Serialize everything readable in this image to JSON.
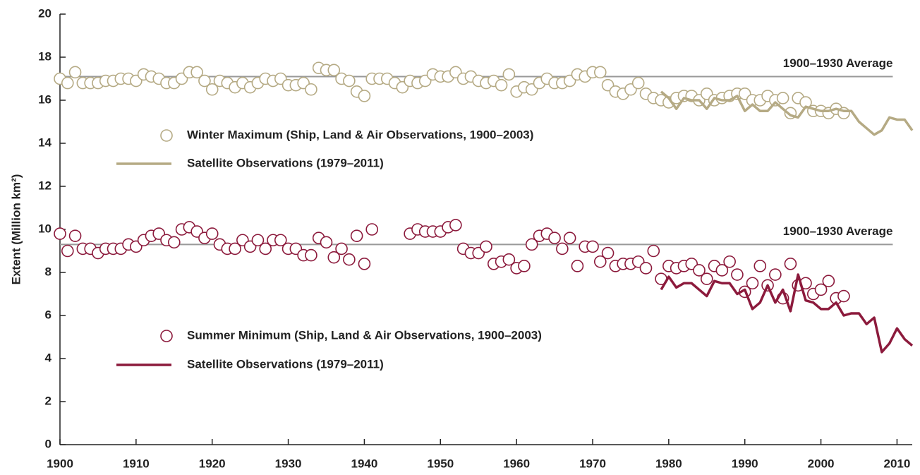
{
  "chart_data": {
    "type": "scatter",
    "y_label": "Extent (Million km²)",
    "xlim": [
      1900,
      2012
    ],
    "xticks": [
      1900,
      1910,
      1920,
      1930,
      1940,
      1950,
      1960,
      1970,
      1980,
      1990,
      2000,
      2010
    ],
    "ylim": [
      0,
      20
    ],
    "yticks": [
      0,
      2,
      4,
      6,
      8,
      10,
      12,
      14,
      16,
      18,
      20
    ],
    "reference_lines": [
      {
        "value": 17.1,
        "label": "1900–1930 Average",
        "color": "#999999"
      },
      {
        "value": 9.3,
        "label": "1900–1930 Average",
        "color": "#999999"
      }
    ],
    "series": [
      {
        "name": "Winter Maximum (Ship, Land & Air Observations, 1900–2003)",
        "type": "scatter",
        "color": "#b5aa84",
        "x": [
          1900,
          1901,
          1902,
          1903,
          1904,
          1905,
          1906,
          1907,
          1908,
          1909,
          1910,
          1911,
          1912,
          1913,
          1914,
          1915,
          1916,
          1917,
          1918,
          1919,
          1920,
          1921,
          1922,
          1923,
          1924,
          1925,
          1926,
          1927,
          1928,
          1929,
          1930,
          1931,
          1932,
          1933,
          1934,
          1935,
          1936,
          1937,
          1938,
          1939,
          1940,
          1941,
          1942,
          1943,
          1944,
          1945,
          1946,
          1947,
          1948,
          1949,
          1950,
          1951,
          1952,
          1953,
          1954,
          1955,
          1956,
          1957,
          1958,
          1959,
          1960,
          1961,
          1962,
          1963,
          1964,
          1965,
          1966,
          1967,
          1968,
          1969,
          1970,
          1971,
          1972,
          1973,
          1974,
          1975,
          1976,
          1977,
          1978,
          1979,
          1980,
          1981,
          1982,
          1983,
          1984,
          1985,
          1986,
          1987,
          1988,
          1989,
          1990,
          1991,
          1992,
          1993,
          1994,
          1995,
          1996,
          1997,
          1998,
          1999,
          2000,
          2001,
          2002,
          2003
        ],
        "values": [
          17.0,
          16.8,
          17.3,
          16.8,
          16.8,
          16.8,
          16.9,
          16.9,
          17.0,
          17.0,
          16.9,
          17.2,
          17.1,
          17.0,
          16.8,
          16.8,
          17.0,
          17.3,
          17.3,
          16.9,
          16.5,
          16.9,
          16.8,
          16.6,
          16.8,
          16.6,
          16.8,
          17.0,
          16.9,
          17.0,
          16.7,
          16.7,
          16.8,
          16.5,
          17.5,
          17.4,
          17.4,
          17.0,
          16.9,
          16.4,
          16.2,
          17.0,
          17.0,
          17.0,
          16.8,
          16.6,
          16.9,
          16.8,
          16.9,
          17.2,
          17.1,
          17.1,
          17.3,
          17.0,
          17.1,
          16.9,
          16.8,
          16.9,
          16.7,
          17.2,
          16.4,
          16.6,
          16.5,
          16.8,
          17.0,
          16.8,
          16.8,
          16.9,
          17.2,
          17.1,
          17.3,
          17.3,
          16.7,
          16.4,
          16.3,
          16.5,
          16.8,
          16.3,
          16.1,
          16.0,
          15.9,
          16.1,
          16.2,
          16.2,
          16.0,
          16.3,
          16.0,
          16.1,
          16.2,
          16.3,
          16.3,
          16.0,
          16.0,
          16.2,
          16.0,
          16.1,
          15.4,
          16.1,
          15.9,
          15.5,
          15.5,
          15.4,
          15.6,
          15.4
        ]
      },
      {
        "name": "Satellite Observations (1979–2011)",
        "type": "line",
        "color": "#b5aa84",
        "x": [
          1979,
          1980,
          1981,
          1982,
          1983,
          1984,
          1985,
          1986,
          1987,
          1988,
          1989,
          1990,
          1991,
          1992,
          1993,
          1994,
          1995,
          1996,
          1997,
          1998,
          1999,
          2000,
          2001,
          2002,
          2003,
          2004,
          2005,
          2006,
          2007,
          2008,
          2009,
          2010,
          2011,
          2012
        ],
        "values": [
          16.4,
          16.1,
          15.6,
          16.1,
          16.0,
          16.0,
          15.6,
          16.1,
          16.0,
          16.0,
          16.2,
          15.5,
          15.8,
          15.5,
          15.5,
          15.9,
          15.6,
          15.3,
          15.2,
          15.7,
          15.6,
          15.5,
          15.5,
          15.6,
          15.5,
          15.5,
          15.0,
          14.7,
          14.4,
          14.6,
          15.2,
          15.1,
          15.1,
          14.6
        ]
      },
      {
        "name": "Summer Minimum (Ship, Land & Air Observations, 1900–2003)",
        "type": "scatter",
        "color": "#8c1a3c",
        "x": [
          1900,
          1901,
          1902,
          1903,
          1904,
          1905,
          1906,
          1907,
          1908,
          1909,
          1910,
          1911,
          1912,
          1913,
          1914,
          1915,
          1916,
          1917,
          1918,
          1919,
          1920,
          1921,
          1922,
          1923,
          1924,
          1925,
          1926,
          1927,
          1928,
          1929,
          1930,
          1931,
          1932,
          1933,
          1934,
          1935,
          1936,
          1937,
          1938,
          1939,
          1940,
          1941,
          1942,
          1943,
          1944,
          1945,
          1946,
          1947,
          1948,
          1949,
          1950,
          1951,
          1952,
          1953,
          1954,
          1955,
          1956,
          1957,
          1958,
          1959,
          1960,
          1961,
          1962,
          1963,
          1964,
          1965,
          1966,
          1967,
          1968,
          1969,
          1970,
          1971,
          1972,
          1973,
          1974,
          1975,
          1976,
          1977,
          1978,
          1979,
          1980,
          1981,
          1982,
          1983,
          1984,
          1985,
          1986,
          1987,
          1988,
          1989,
          1990,
          1991,
          1992,
          1993,
          1994,
          1995,
          1996,
          1997,
          1998,
          1999,
          2000,
          2001,
          2002,
          2003
        ],
        "values": [
          9.8,
          9.0,
          9.7,
          9.1,
          9.1,
          8.9,
          9.1,
          9.1,
          9.1,
          9.3,
          9.2,
          9.5,
          9.7,
          9.8,
          9.5,
          9.4,
          10.0,
          10.1,
          9.9,
          9.6,
          9.8,
          9.3,
          9.1,
          9.1,
          9.5,
          9.2,
          9.5,
          9.1,
          9.5,
          9.5,
          9.1,
          9.1,
          8.8,
          8.8,
          9.6,
          9.4,
          8.7,
          9.1,
          8.6,
          9.7,
          8.4,
          10.0,
          null,
          null,
          null,
          null,
          9.8,
          10.0,
          9.9,
          9.9,
          9.9,
          10.1,
          10.2,
          9.1,
          8.9,
          8.9,
          9.2,
          8.4,
          8.5,
          8.6,
          8.2,
          8.3,
          9.3,
          9.7,
          9.8,
          9.6,
          9.1,
          9.6,
          8.3,
          9.2,
          9.2,
          8.5,
          8.9,
          8.3,
          8.4,
          8.4,
          8.5,
          8.2,
          9.0,
          7.7,
          8.3,
          8.2,
          8.3,
          8.4,
          8.1,
          7.7,
          8.3,
          8.1,
          8.5,
          7.9,
          7.1,
          7.5,
          8.3,
          7.4,
          7.9,
          6.8,
          8.4,
          7.4,
          7.5,
          7.0,
          7.2,
          7.6,
          6.8,
          6.9
        ]
      },
      {
        "name": "Satellite Observations (1979–2011)",
        "type": "line",
        "color": "#8c1a3c",
        "x": [
          1979,
          1980,
          1981,
          1982,
          1983,
          1984,
          1985,
          1986,
          1987,
          1988,
          1989,
          1990,
          1991,
          1992,
          1993,
          1994,
          1995,
          1996,
          1997,
          1998,
          1999,
          2000,
          2001,
          2002,
          2003,
          2004,
          2005,
          2006,
          2007,
          2008,
          2009,
          2010,
          2011,
          2012
        ],
        "values": [
          7.2,
          7.8,
          7.3,
          7.5,
          7.5,
          7.2,
          6.9,
          7.6,
          7.5,
          7.5,
          7.0,
          7.2,
          6.3,
          6.6,
          7.4,
          6.6,
          7.2,
          6.2,
          7.9,
          6.7,
          6.6,
          6.3,
          6.3,
          6.6,
          6.0,
          6.1,
          6.1,
          5.6,
          5.9,
          4.3,
          4.7,
          5.4,
          4.9,
          4.6
        ]
      }
    ]
  }
}
